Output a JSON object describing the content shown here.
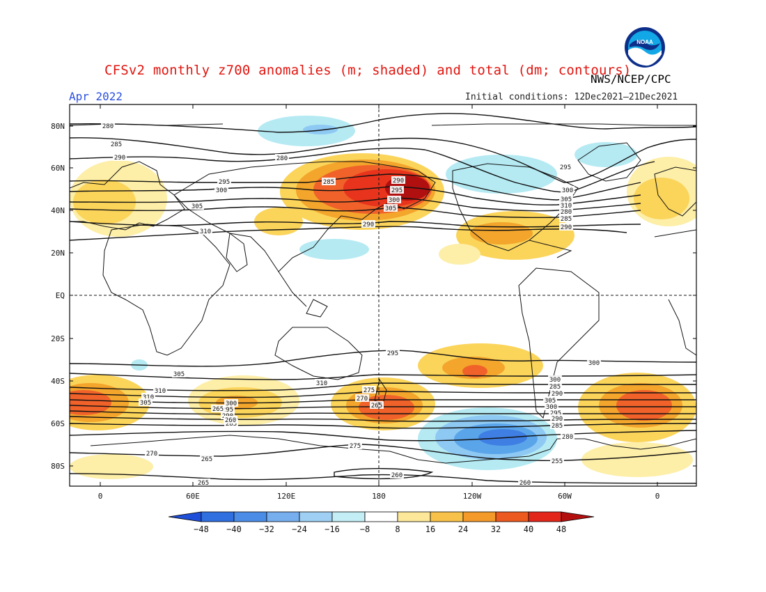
{
  "header": {
    "title": "CFSv2 monthly z700 anomalies (m; shaded) and total (dm; contours)",
    "agency": "NWS/NCEP/CPC",
    "month": "Apr 2022",
    "initial_conditions": "Initial conditions: 12Dec2021–21Dec2021",
    "logo_text": "NOAA"
  },
  "map": {
    "lat_labels": [
      "80N",
      "60N",
      "40N",
      "20N",
      "EQ",
      "20S",
      "40S",
      "60S",
      "80S"
    ],
    "lon_labels": [
      "0",
      "60E",
      "120E",
      "180",
      "120W",
      "60W",
      "0"
    ],
    "contour_labels": [
      "280",
      "285",
      "290",
      "295",
      "300",
      "305",
      "310",
      "280",
      "285",
      "290",
      "295",
      "300",
      "305",
      "290",
      "295",
      "300",
      "305",
      "310",
      "280",
      "285",
      "290",
      "295",
      "300",
      "305",
      "310",
      "310",
      "310",
      "305",
      "300",
      "295",
      "290",
      "285",
      "275",
      "270",
      "265",
      "300",
      "285",
      "290",
      "305",
      "300",
      "295",
      "290",
      "285",
      "280",
      "275",
      "270",
      "265",
      "260",
      "265",
      "260",
      "255",
      "265",
      "260"
    ],
    "colors": {
      "strong_pos": "#b01010",
      "pos_40": "#e8341c",
      "pos_32": "#f0622a",
      "pos_24": "#f3a52c",
      "pos_16": "#fbd45a",
      "pos_8": "#fdeea8",
      "neg_8": "#b5eaf3",
      "neg_24": "#8ec9f4",
      "neg_32": "#5aa5ea",
      "neg_40": "#3f7fe3"
    }
  },
  "colorbar": {
    "ticks": [
      "−48",
      "−40",
      "−32",
      "−24",
      "−16",
      "−8",
      "8",
      "16",
      "24",
      "32",
      "40",
      "48"
    ],
    "colors": [
      "#1f4fd8",
      "#2f6fe0",
      "#4b8de6",
      "#76aeee",
      "#9fd0f3",
      "#c3eef5",
      "#ffffff",
      "#fde89a",
      "#f8c24a",
      "#f39a2b",
      "#ec5a1f",
      "#e3261a",
      "#b40f0f"
    ]
  }
}
